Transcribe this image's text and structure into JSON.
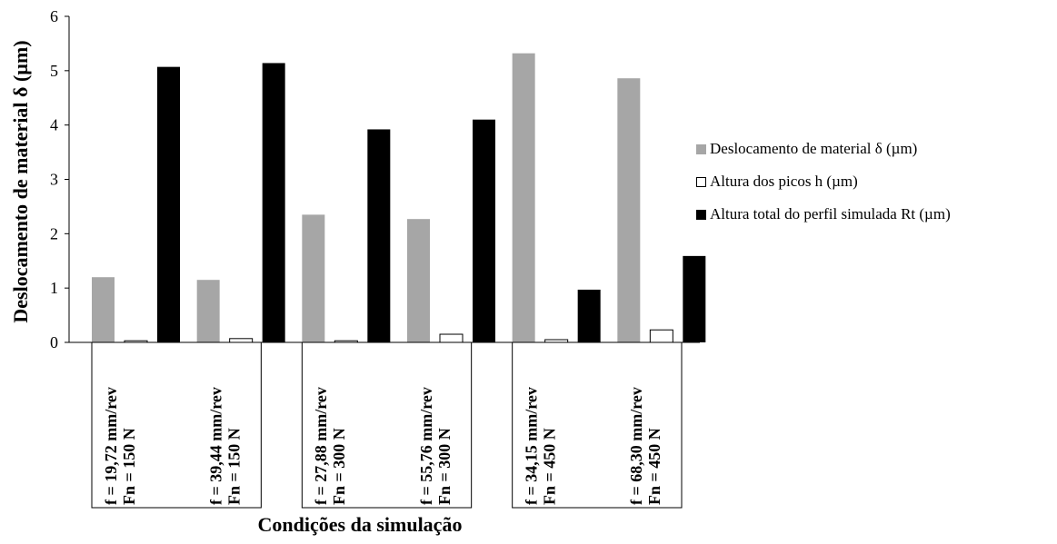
{
  "chart_data": {
    "type": "bar",
    "title": "",
    "xlabel": "Condições da simulação",
    "ylabel": "Deslocamento de material δ (µm)",
    "ylim": [
      0,
      6
    ],
    "yticks": [
      0,
      1,
      2,
      3,
      4,
      5,
      6
    ],
    "grid": false,
    "legend_position": "right",
    "categories": [
      {
        "line1": "f = 19,72 mm/rev",
        "line2": "Fn = 150 N"
      },
      {
        "line1": "f = 39,44 mm/rev",
        "line2": "Fn = 150 N"
      },
      {
        "line1": "f = 27,88 mm/rev",
        "line2": "Fn = 300 N"
      },
      {
        "line1": "f = 55,76 mm/rev",
        "line2": "Fn = 300 N"
      },
      {
        "line1": "f = 34,15 mm/rev",
        "line2": "Fn = 450 N"
      },
      {
        "line1": "f = 68,30 mm/rev",
        "line2": "Fn = 450 N"
      }
    ],
    "series": [
      {
        "name": "Deslocamento  de material  δ (µm)",
        "color": "#a6a6a6",
        "values": [
          1.2,
          1.15,
          2.35,
          2.27,
          5.32,
          4.86
        ]
      },
      {
        "name": "Altura  dos picos  h (µm)",
        "color": "#ffffff",
        "values": [
          0.03,
          0.07,
          0.03,
          0.15,
          0.05,
          0.23
        ]
      },
      {
        "name": "Altura  total do perfil  simulada  Rt (µm)",
        "color": "#000000",
        "values": [
          5.07,
          5.14,
          3.92,
          4.1,
          0.97,
          1.59
        ]
      }
    ]
  }
}
